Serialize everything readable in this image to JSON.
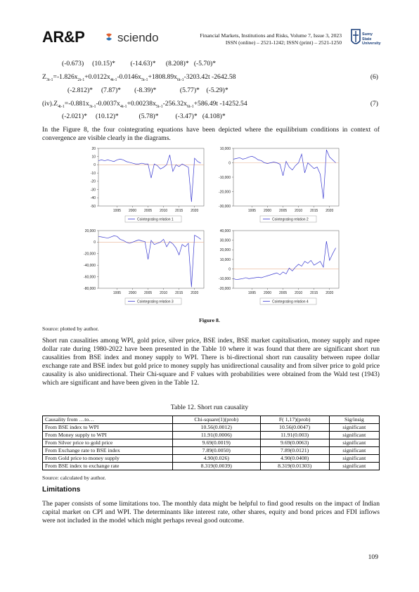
{
  "header": {
    "logo_arp": "AR&P",
    "logo_sciendo": "sciendo",
    "journal_line": "Financial Markets, Institutions and Risks, Volume 7, Issue 3, 2023",
    "issn_line": "ISSN (online) – 2521-1242; ISSN (print) – 2521-1250",
    "uni_line1": "Sumy",
    "uni_line2": "State",
    "uni_line3": "University"
  },
  "equations": {
    "row1_stats": "(-0.673)     (10.15)*         (-14.63)*      (8.208)*   (-5.70)*",
    "eq6": "Z3t-1=-1.826x2t-1+0.0122x4t-1-0.0146x5t-1+1808.89x6t-1-3203.42t -2642.58",
    "eq6_num": "(6)",
    "row2_stats": "(-2.812)*     (7.87)*        (-8.39)*              (5.77)*    (-5.29)*",
    "eq7": "(iv).Z4t-1=-0.881x3t-1-0.0037x4t-1+0.00238x5t-1-256.32x6t-1+586.49t -14252.54",
    "eq7_num": "(7)",
    "row3_stats": "(-2.021)*     (10.12)*            (5.78)*          (-3.47)*   (4.108)*"
  },
  "intro_paragraph": "In the Figure 8, the four cointegrating equations have been depicted where the equilibrium conditions in context of convergence are visible clearly in the diagrams.",
  "figure": {
    "caption": "Figure 8.",
    "source": "Source: plotted by author."
  },
  "chart_data": [
    {
      "type": "line",
      "legend": "Cointegrating relation 1",
      "x": [
        1989,
        1990,
        1991,
        1992,
        1993,
        1994,
        1995,
        1996,
        1997,
        1998,
        1999,
        2000,
        2001,
        2002,
        2003,
        2004,
        2005,
        2006,
        2007,
        2008,
        2009,
        2010,
        2011,
        2012,
        2013,
        2014,
        2015,
        2016,
        2017,
        2018,
        2019,
        2020,
        2021,
        2022
      ],
      "values": [
        5,
        6,
        5,
        6,
        5,
        4,
        6,
        7,
        6,
        4,
        3,
        2,
        1,
        1,
        2,
        1,
        1,
        -16,
        1,
        -1,
        -5,
        -3,
        0,
        12,
        -8,
        0,
        -2,
        1,
        -1,
        -3,
        -45,
        8,
        4,
        2
      ],
      "yticks": [
        "20",
        "10",
        "0",
        "-10",
        "-20",
        "-30",
        "-40",
        "-50"
      ],
      "ylim": [
        -50,
        20
      ],
      "xticks": [
        "1995",
        "2000",
        "2005",
        "2010",
        "2015",
        "2020"
      ]
    },
    {
      "type": "line",
      "legend": "Cointegrating relation 2",
      "x": [
        1989,
        1990,
        1991,
        1992,
        1993,
        1994,
        1995,
        1996,
        1997,
        1998,
        1999,
        2000,
        2001,
        2002,
        2003,
        2004,
        2005,
        2006,
        2007,
        2008,
        2009,
        2010,
        2011,
        2012,
        2013,
        2014,
        2015,
        2016,
        2017,
        2018,
        2019,
        2020,
        2021,
        2022
      ],
      "values": [
        2500,
        3000,
        3500,
        2500,
        3000,
        4000,
        4500,
        3500,
        2000,
        1500,
        0,
        -500,
        0,
        500,
        0,
        -1000,
        -9000,
        1000,
        -3000,
        -5000,
        -2000,
        0,
        6000,
        -7000,
        0,
        -2000,
        -4000,
        -3000,
        -8000,
        -25000,
        9000,
        4000,
        2000,
        0
      ],
      "yticks": [
        "10,000",
        "0",
        "-10,000",
        "-20,000",
        "-30,000"
      ],
      "ylim": [
        -30000,
        10000
      ],
      "xticks": [
        "1995",
        "2000",
        "2005",
        "2010",
        "2015",
        "2020"
      ]
    },
    {
      "type": "line",
      "legend": "Cointegrating relation 3",
      "x": [
        1989,
        1990,
        1991,
        1992,
        1993,
        1994,
        1995,
        1996,
        1997,
        1998,
        1999,
        2000,
        2001,
        2002,
        2003,
        2004,
        2005,
        2006,
        2007,
        2008,
        2009,
        2010,
        2011,
        2012,
        2013,
        2014,
        2015,
        2016,
        2017,
        2018,
        2019,
        2020,
        2021,
        2022
      ],
      "values": [
        10000,
        9000,
        8000,
        7000,
        9000,
        11000,
        10000,
        5000,
        3000,
        0,
        -2000,
        0,
        2000,
        4000,
        2000,
        1000,
        -30000,
        3000,
        -4000,
        -2000,
        0,
        5000,
        -8000,
        1000,
        -3000,
        -10000,
        -22000,
        -4000,
        -8000,
        -2000,
        -78000,
        12000,
        9000,
        5000
      ],
      "yticks": [
        "20,000",
        "0",
        "-20,000",
        "-40,000",
        "-60,000",
        "-80,000"
      ],
      "ylim": [
        -80000,
        20000
      ],
      "xticks": [
        "1995",
        "2000",
        "2005",
        "2010",
        "2015",
        "2020"
      ]
    },
    {
      "type": "line",
      "legend": "Cointegrating relation 4",
      "x": [
        1989,
        1990,
        1991,
        1992,
        1993,
        1994,
        1995,
        1996,
        1997,
        1998,
        1999,
        2000,
        2001,
        2002,
        2003,
        2004,
        2005,
        2006,
        2007,
        2008,
        2009,
        2010,
        2011,
        2012,
        2013,
        2014,
        2015,
        2016,
        2017,
        2018,
        2019,
        2020,
        2021,
        2022
      ],
      "values": [
        -10000,
        -11000,
        -10500,
        -10000,
        -9000,
        -10000,
        -9500,
        -9000,
        -8500,
        -9000,
        -8000,
        -7000,
        -6000,
        -5000,
        -4000,
        -6000,
        -3000,
        -5000,
        1000,
        -2000,
        2000,
        5000,
        3000,
        8000,
        6000,
        9000,
        4000,
        6000,
        8000,
        2000,
        29000,
        9000,
        16000,
        22000
      ],
      "yticks": [
        "40,000",
        "30,000",
        "20,000",
        "10,000",
        "0",
        "-10,000",
        "-20,000"
      ],
      "ylim": [
        -20000,
        40000
      ],
      "xticks": [
        "1995",
        "2000",
        "2005",
        "2010",
        "2015",
        "2020"
      ]
    }
  ],
  "paragraph2": "Short run causalities among WPI, gold price, silver price, BSE index, BSE market capitalisation, money supply and rupee dollar rate during 1980-2022 have been presented in the Table 10 where it was found that there are significant short run causalities from BSE index and money supply to WPI. There is bi-directional short run causality between rupee dollar exchange rate and BSE index but gold price to money supply has unidirectional causality and from silver price to gold price causality is also unidirectional. Their Chi-square and F values with probabilities were obtained from the Wald test (1943) which are significant and have been given in the Table 12.",
  "table": {
    "caption": "Table 12. Short run causality",
    "headers": [
      "Causality from …to…",
      "Chi-square(1)(prob)",
      "F( 1,17)(prob)",
      "Sig/insig"
    ],
    "rows": [
      [
        "From BSE index to WPI",
        "10.56(0.0012)",
        "10.56(0.0047)",
        "significant"
      ],
      [
        "From Money supply to WPI",
        "11.91(0.0006)",
        "11.91(0.003)",
        "significant"
      ],
      [
        "From Silver price to gold price",
        "9.69(0.0019)",
        "9.69(0.0063)",
        "significant"
      ],
      [
        "From Exchange rate to BSE index",
        "7.89(0.0050)",
        "7.89(0.0121)",
        "significant"
      ],
      [
        "From Gold price to money supply",
        "4.90(0.026)",
        "4.90(0.0408)",
        "significant"
      ],
      [
        "From BSE index to exchange rate",
        "8.319(0.0039)",
        "8.319(0.01303)",
        "significant"
      ]
    ],
    "source": "Source: calculated by author."
  },
  "limitations": {
    "heading": "Limitations",
    "text": "The paper consists of some limitations too. The monthly data might be helpful to find good results on the impact of Indian capital market on CPI and WPI. The determinants like interest rate, other shares, equity and bond prices and FDI inflows were not included in the model which might perhaps reveal good outcome."
  },
  "page_number": "109"
}
